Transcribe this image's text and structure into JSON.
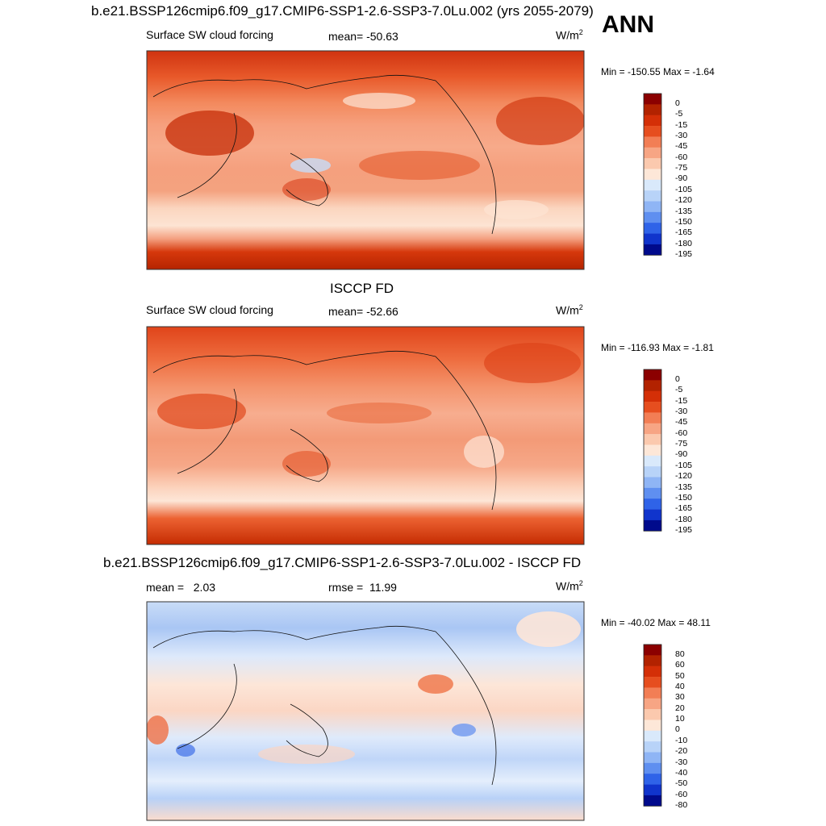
{
  "season": "ANN",
  "chart_data": [
    {
      "type": "heatmap",
      "title": "b.e21.BSSP126cmip6.f09_g17.CMIP6-SSP1-2.6-SSP3-7.0Lu.002 (yrs 2055-2079)",
      "variable": "Surface SW cloud forcing",
      "stat_label": "mean=",
      "stat_value": "-50.63",
      "units": "W/m",
      "units_sup": "2",
      "min_label": "Min = -150.55",
      "max_label": "Max =  -1.64",
      "colorbar_levels": [
        "0",
        "-5",
        "-15",
        "-30",
        "-45",
        "-60",
        "-75",
        "-90",
        "-105",
        "-120",
        "-135",
        "-150",
        "-165",
        "-180",
        "-195"
      ],
      "colorbar_colors": [
        "#8b0000",
        "#b22200",
        "#d42f07",
        "#e64e1f",
        "#f27e55",
        "#f7a584",
        "#fbc9ae",
        "#fde7d8",
        "#d9e9fb",
        "#b8d3f8",
        "#8fb5f5",
        "#5f8ff0",
        "#2f63e8",
        "#1034cc",
        "#000a8c"
      ]
    },
    {
      "type": "heatmap",
      "title": "ISCCP FD",
      "variable": "Surface SW cloud forcing",
      "stat_label": "mean=",
      "stat_value": "-52.66",
      "units": "W/m",
      "units_sup": "2",
      "min_label": "Min = -116.93",
      "max_label": "Max =  -1.81",
      "colorbar_levels": [
        "0",
        "-5",
        "-15",
        "-30",
        "-45",
        "-60",
        "-75",
        "-90",
        "-105",
        "-120",
        "-135",
        "-150",
        "-165",
        "-180",
        "-195"
      ],
      "colorbar_colors": [
        "#8b0000",
        "#b22200",
        "#d42f07",
        "#e64e1f",
        "#f27e55",
        "#f7a584",
        "#fbc9ae",
        "#fde7d8",
        "#d9e9fb",
        "#b8d3f8",
        "#8fb5f5",
        "#5f8ff0",
        "#2f63e8",
        "#1034cc",
        "#000a8c"
      ]
    },
    {
      "type": "heatmap",
      "title": "b.e21.BSSP126cmip6.f09_g17.CMIP6-SSP1-2.6-SSP3-7.0Lu.002 - ISCCP FD",
      "variable": "mean =",
      "stat_label": "rmse =",
      "stat_value": "11.99",
      "mean_value": "2.03",
      "units": "W/m",
      "units_sup": "2",
      "min_label": "Min = -40.02",
      "max_label": "Max =  48.11",
      "colorbar_levels": [
        "80",
        "60",
        "50",
        "40",
        "30",
        "20",
        "10",
        "0",
        "-10",
        "-20",
        "-30",
        "-40",
        "-50",
        "-60",
        "-80"
      ],
      "colorbar_colors": [
        "#8b0000",
        "#b22200",
        "#d42f07",
        "#e64e1f",
        "#f27e55",
        "#f7a584",
        "#fbc9ae",
        "#fde7d8",
        "#d9e9fb",
        "#b8d3f8",
        "#8fb5f5",
        "#5f8ff0",
        "#2f63e8",
        "#1034cc",
        "#000a8c"
      ]
    }
  ]
}
